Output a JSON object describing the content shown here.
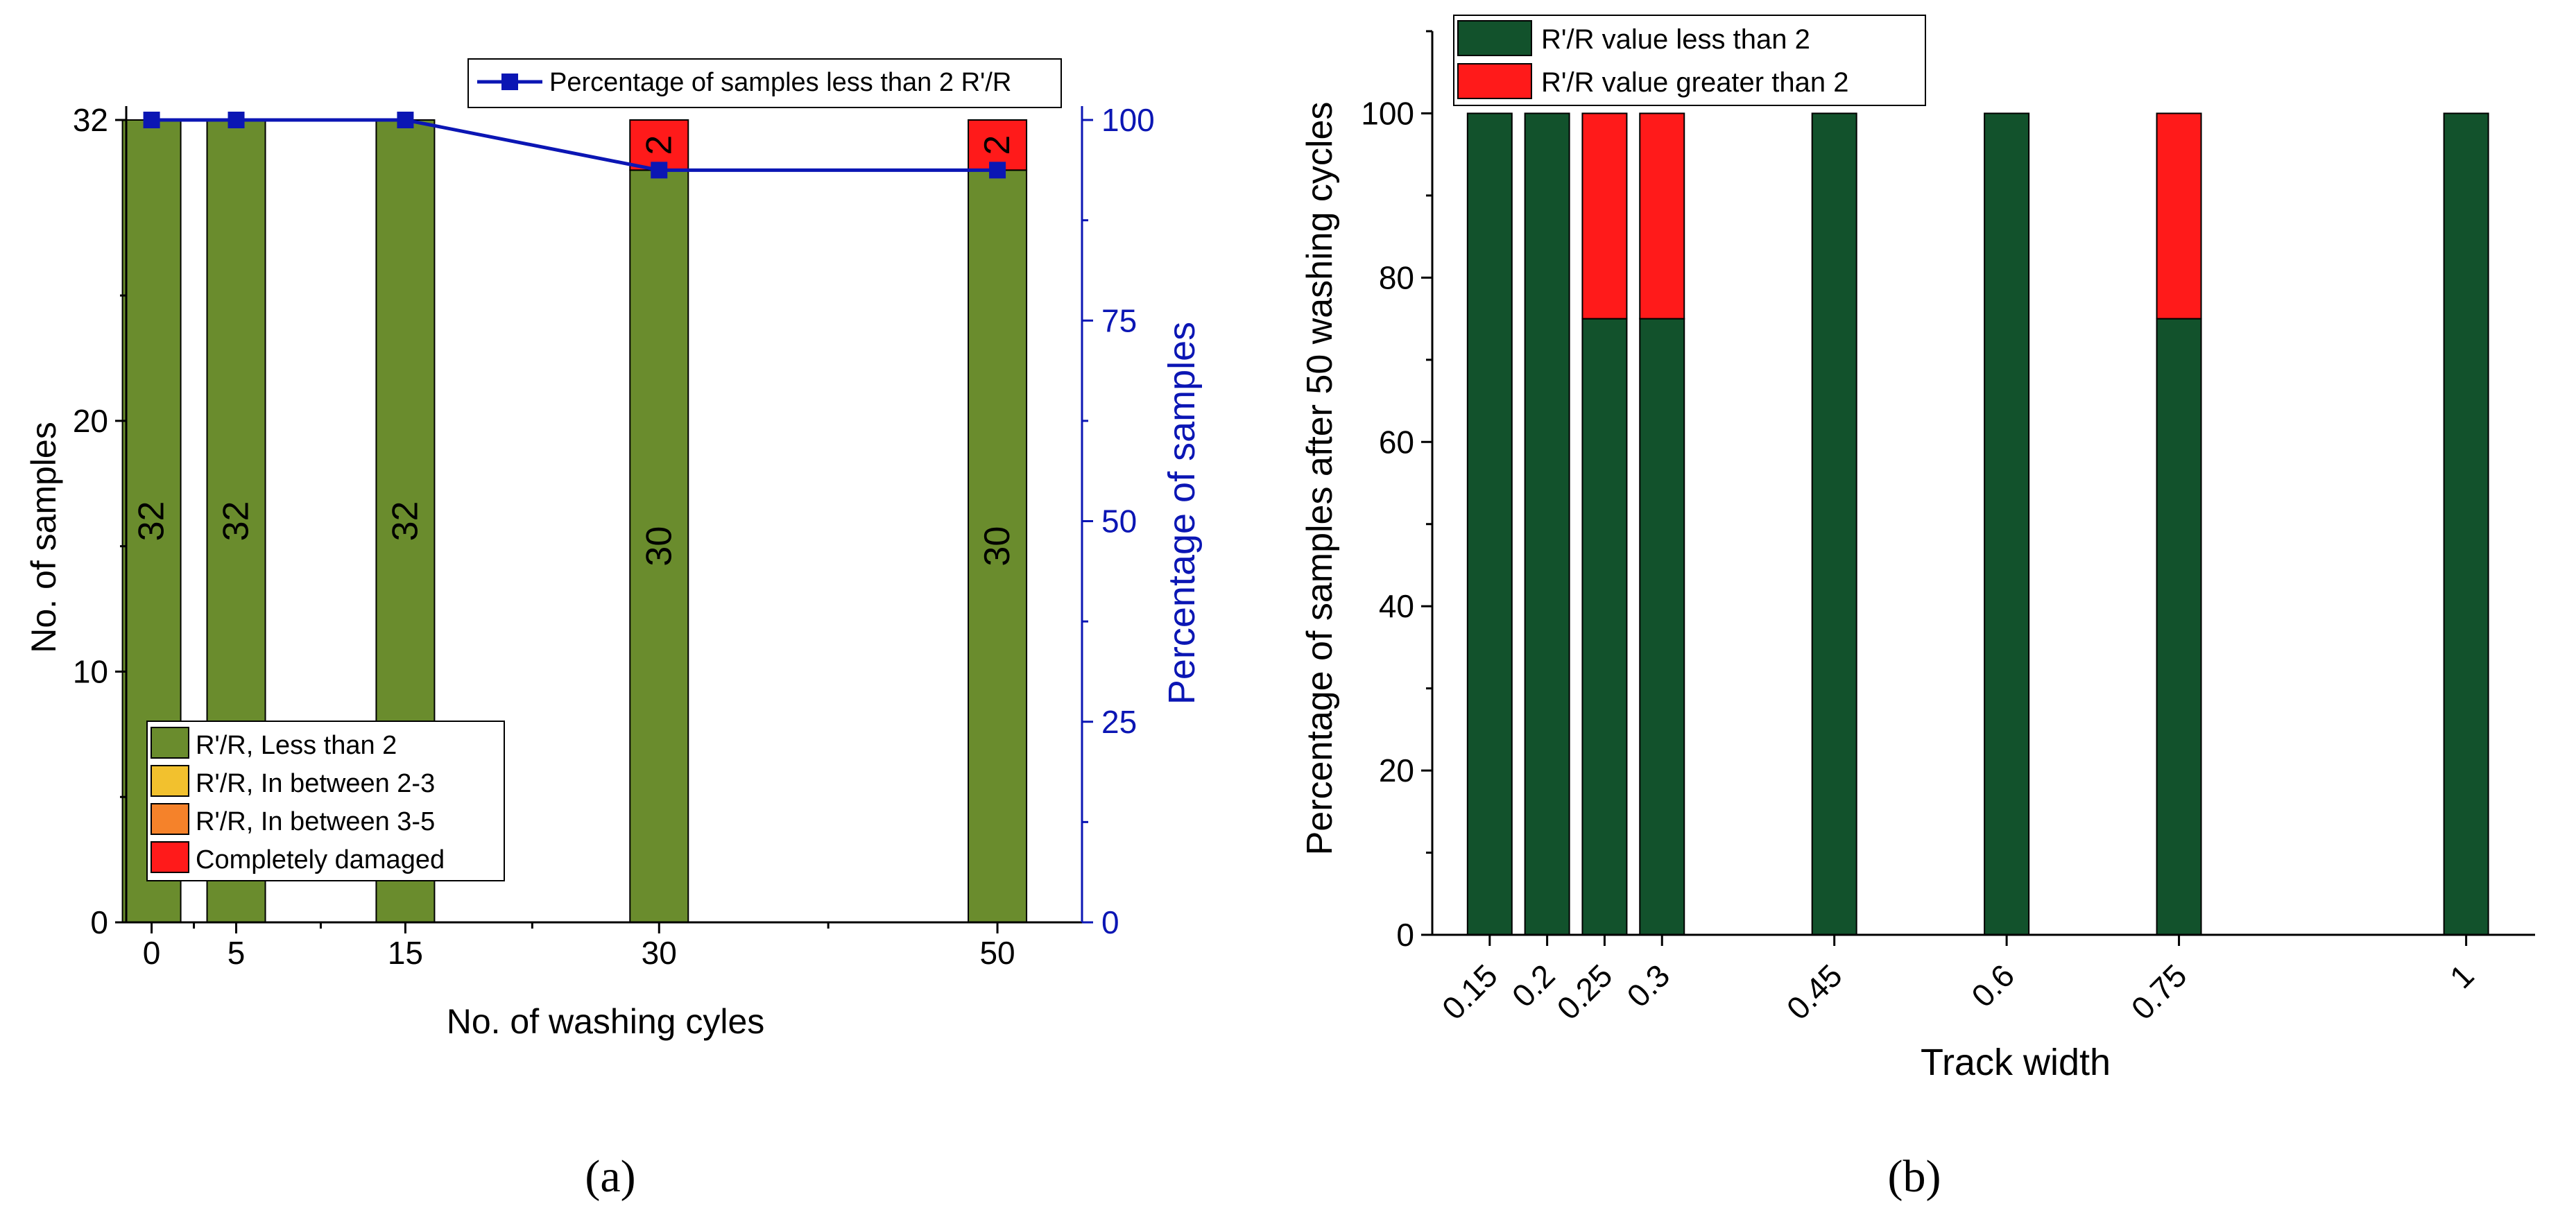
{
  "colors": {
    "green_a": "#6a8c2d",
    "yellow": "#f2c12e",
    "orange": "#f5822a",
    "red": "#ff1a1a",
    "dark_green": "#12522c",
    "blue": "#0b16b4",
    "axis": "#000000"
  },
  "chart_data": [
    {
      "type": "bar",
      "panel": "a",
      "caption": "(a)",
      "title": "",
      "xlabel": "No. of washing cyles",
      "ylabel": "No. of samples",
      "y2label": "Percentage of samples",
      "categories": [
        "0",
        "5",
        "15",
        "30",
        "50"
      ],
      "x": [
        0,
        5,
        15,
        30,
        50
      ],
      "xlim": [
        -1.5,
        55
      ],
      "ylim": [
        0,
        32
      ],
      "yticks": [
        0,
        10,
        20,
        32
      ],
      "y2lim": [
        0,
        100
      ],
      "y2ticks": [
        0,
        25,
        50,
        75,
        100
      ],
      "stacked": true,
      "series": [
        {
          "name": "R'/R, Less than 2",
          "color_key": "green_a",
          "values": [
            32,
            32,
            32,
            30,
            30
          ],
          "labels": [
            "32",
            "32",
            "32",
            "30",
            "30"
          ]
        },
        {
          "name": "R'/R, In between 2-3",
          "color_key": "yellow",
          "values": [
            0,
            0,
            0,
            0,
            0
          ]
        },
        {
          "name": "R'/R, In between 3-5",
          "color_key": "orange",
          "values": [
            0,
            0,
            0,
            0,
            0
          ]
        },
        {
          "name": "Completely damaged",
          "color_key": "red",
          "values": [
            0,
            0,
            0,
            2,
            2
          ],
          "labels": [
            "",
            "",
            "",
            "2",
            "2"
          ]
        }
      ],
      "line_series": {
        "name": "Percentage of samples less than 2 R'/R",
        "axis": "right",
        "color_key": "blue",
        "x": [
          0,
          5,
          15,
          30,
          50
        ],
        "values": [
          100,
          100,
          100,
          93.75,
          93.75
        ]
      },
      "legend_placement": "bottom-left",
      "line_legend_placement": "top-right"
    },
    {
      "type": "bar",
      "panel": "b",
      "caption": "(b)",
      "title": "",
      "xlabel": "Track width",
      "ylabel": "Percentage of samples after 50 washing cycles",
      "categories": [
        "0.15",
        "0.2",
        "0.25",
        "0.3",
        "0.45",
        "0.6",
        "0.75",
        "1"
      ],
      "x": [
        0.15,
        0.2,
        0.25,
        0.3,
        0.45,
        0.6,
        0.75,
        1
      ],
      "xlim": [
        0.1,
        1.06
      ],
      "ylim": [
        0,
        110
      ],
      "yticks": [
        0,
        20,
        40,
        60,
        80,
        100
      ],
      "stacked": true,
      "series": [
        {
          "name": "R'/R value less than 2",
          "color_key": "dark_green",
          "values": [
            100,
            100,
            75,
            75,
            100,
            100,
            75,
            100
          ]
        },
        {
          "name": "R'/R value greater than 2",
          "color_key": "red",
          "values": [
            0,
            0,
            25,
            25,
            0,
            0,
            25,
            0
          ]
        }
      ],
      "legend_placement": "top-left"
    }
  ]
}
